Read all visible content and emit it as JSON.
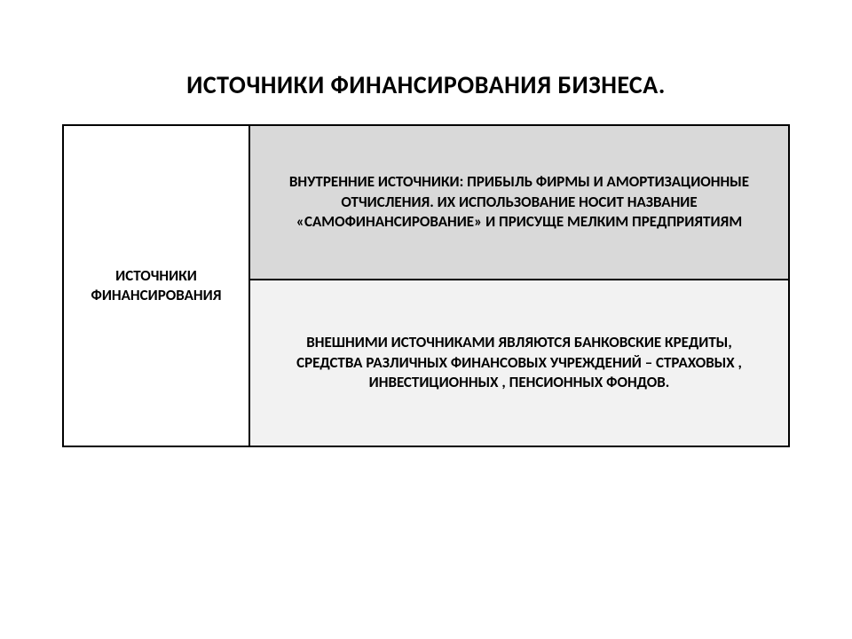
{
  "title": "ИСТОЧНИКИ ФИНАНСИРОВАНИЯ  БИЗНЕСА.",
  "table": {
    "left_label": "ИСТОЧНИКИ ФИНАНСИРОВАНИЯ",
    "top_cell": "ВНУТРЕННИЕ  ИСТОЧНИКИ: ПРИБЫЛЬ ФИРМЫ  И АМОРТИЗАЦИОННЫЕ ОТЧИСЛЕНИЯ.\nИХ  ИСПОЛЬЗОВАНИЕ НОСИТ НАЗВАНИЕ «САМОФИНАНСИРОВАНИЕ» И ПРИСУЩЕ МЕЛКИМ ПРЕДПРИЯТИЯМ",
    "bottom_cell": "ВНЕШНИМИ ИСТОЧНИКАМИ ЯВЛЯЮТСЯ БАНКОВСКИЕ КРЕДИТЫ, СРЕДСТВА РАЗЛИЧНЫХ  ФИНАНСОВЫХ УЧРЕЖДЕНИЙ – СТРАХОВЫХ , ИНВЕСТИЦИОННЫХ , ПЕНСИОННЫХ ФОНДОВ.",
    "colors": {
      "title_color": "#000000",
      "background": "#ffffff",
      "border_color": "#000000",
      "top_cell_bg": "#d9d9d9",
      "bottom_cell_bg": "#f2f2f2",
      "left_cell_bg": "#ffffff"
    },
    "layout": {
      "total_width": 820,
      "left_col_width": 212,
      "right_col_width": 608,
      "top_cell_height": 176,
      "bottom_cell_height": 188,
      "border_width": 2
    },
    "typography": {
      "title_fontsize": 28,
      "cell_fontsize": 17,
      "font_weight": "bold",
      "font_family": "Calibri, Arial, sans-serif"
    }
  }
}
